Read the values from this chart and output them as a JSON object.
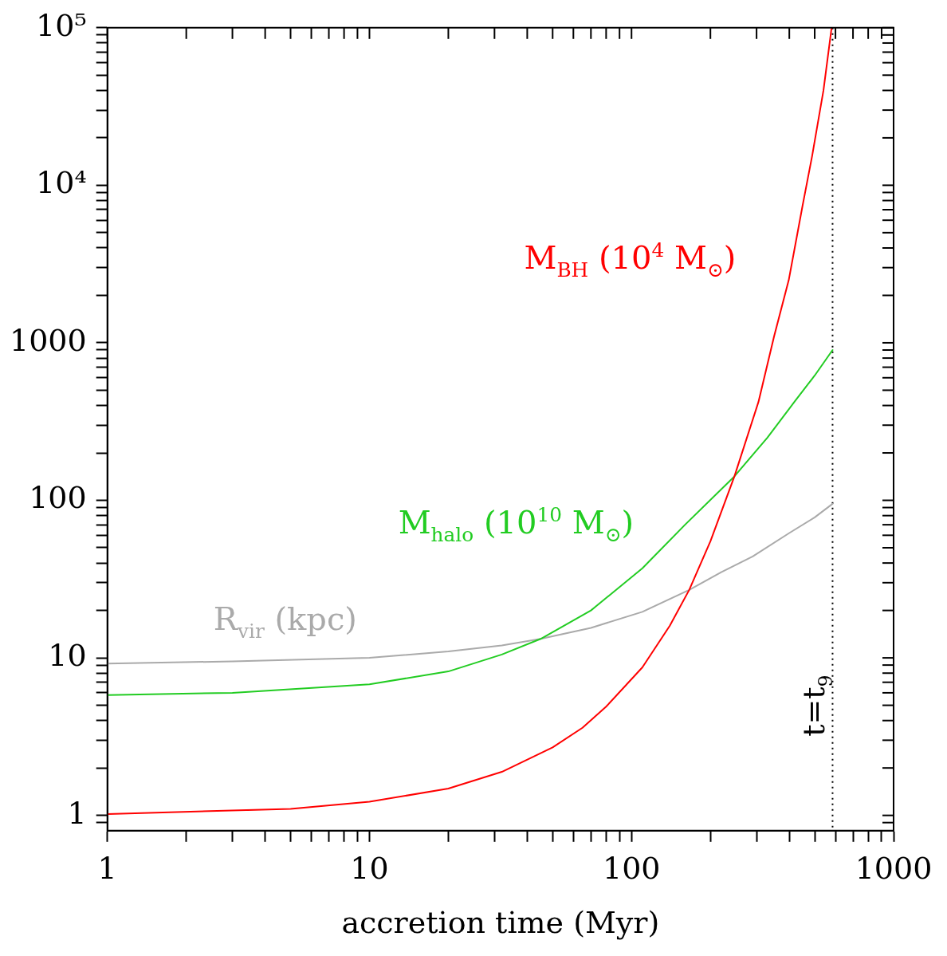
{
  "chart_data": {
    "type": "line",
    "xlabel": "accretion time (Myr)",
    "log": "xy",
    "grid": false,
    "legend": false,
    "marker": "none",
    "line_style": "solid",
    "xlim": [
      1,
      1000
    ],
    "ylim": [
      0.8,
      100000
    ],
    "xticks": [
      1,
      {
        "value": 2,
        "label": null
      },
      {
        "value": 3,
        "label": null
      },
      {
        "value": 4,
        "label": null
      },
      {
        "value": 5,
        "label": null
      },
      {
        "value": 6,
        "label": null
      },
      {
        "value": 7,
        "label": null
      },
      {
        "value": 8,
        "label": null
      },
      {
        "value": 9,
        "label": null
      },
      10,
      {
        "value": 20,
        "label": null
      },
      {
        "value": 30,
        "label": null
      },
      {
        "value": 40,
        "label": null
      },
      {
        "value": 50,
        "label": null
      },
      {
        "value": 60,
        "label": null
      },
      {
        "value": 70,
        "label": null
      },
      {
        "value": 80,
        "label": null
      },
      {
        "value": 90,
        "label": null
      },
      100,
      {
        "value": 200,
        "label": null
      },
      {
        "value": 300,
        "label": null
      },
      {
        "value": 400,
        "label": null
      },
      {
        "value": 500,
        "label": null
      },
      {
        "value": 600,
        "label": null
      },
      {
        "value": 700,
        "label": null
      },
      {
        "value": 800,
        "label": null
      },
      {
        "value": 900,
        "label": null
      },
      1000
    ],
    "yticks": [
      {
        "value": 0.9,
        "label": null
      },
      1,
      {
        "value": 2,
        "label": null
      },
      {
        "value": 3,
        "label": null
      },
      {
        "value": 4,
        "label": null
      },
      {
        "value": 5,
        "label": null
      },
      {
        "value": 6,
        "label": null
      },
      {
        "value": 7,
        "label": null
      },
      {
        "value": 8,
        "label": null
      },
      {
        "value": 9,
        "label": null
      },
      10,
      {
        "value": 20,
        "label": null
      },
      {
        "value": 30,
        "label": null
      },
      {
        "value": 40,
        "label": null
      },
      {
        "value": 50,
        "label": null
      },
      {
        "value": 60,
        "label": null
      },
      {
        "value": 70,
        "label": null
      },
      {
        "value": 80,
        "label": null
      },
      {
        "value": 90,
        "label": null
      },
      100,
      {
        "value": 200,
        "label": null
      },
      {
        "value": 300,
        "label": null
      },
      {
        "value": 400,
        "label": null
      },
      {
        "value": 500,
        "label": null
      },
      {
        "value": 600,
        "label": null
      },
      {
        "value": 700,
        "label": null
      },
      {
        "value": 800,
        "label": null
      },
      {
        "value": 900,
        "label": null
      },
      1000,
      {
        "value": 2000,
        "label": null
      },
      {
        "value": 3000,
        "label": null
      },
      {
        "value": 4000,
        "label": null
      },
      {
        "value": 5000,
        "label": null
      },
      {
        "value": 6000,
        "label": null
      },
      {
        "value": 7000,
        "label": null
      },
      {
        "value": 8000,
        "label": null
      },
      {
        "value": 9000,
        "label": null
      },
      {
        "value": 10000,
        "label": "10⁴"
      },
      {
        "value": 20000,
        "label": null
      },
      {
        "value": 30000,
        "label": null
      },
      {
        "value": 40000,
        "label": null
      },
      {
        "value": 50000,
        "label": null
      },
      {
        "value": 60000,
        "label": null
      },
      {
        "value": 70000,
        "label": null
      },
      {
        "value": 80000,
        "label": null
      },
      {
        "value": 90000,
        "label": null
      },
      {
        "value": 100000,
        "label": "10⁵"
      }
    ],
    "series": [
      {
        "name": "M$_{BH}$ (10$^{4}$ M$_{⊙}$)",
        "color": "#ff0000",
        "x": [
          1,
          5,
          10,
          20,
          32,
          50,
          65,
          80,
          110,
          140,
          166,
          200,
          247,
          305,
          350,
          398,
          450,
          489,
          540,
          580
        ],
        "values": [
          1.02,
          1.1,
          1.22,
          1.48,
          1.89,
          2.7,
          3.6,
          4.9,
          8.7,
          16,
          27,
          55,
          142,
          421,
          1100,
          2500,
          7500,
          15400,
          40000,
          100000
        ]
      },
      {
        "name": "M$_{halo}$ (10$^{10}$ M$_{⊙}$)",
        "color": "#22cc22",
        "x": [
          1,
          3,
          10,
          20,
          32,
          45,
          70,
          110,
          160,
          247,
          330,
          418,
          500,
          585
        ],
        "values": [
          5.8,
          6.0,
          6.8,
          8.2,
          10.5,
          13.2,
          20,
          37,
          70,
          142,
          250,
          421,
          620,
          900
        ]
      },
      {
        "name": "R$_{vir}$ (kpc)",
        "color": "#aaaaaa",
        "x": [
          1,
          3,
          10,
          20,
          32,
          45,
          70,
          110,
          166,
          220,
          290,
          400,
          500,
          585
        ],
        "values": [
          9.2,
          9.5,
          10.0,
          11.0,
          12.0,
          13.2,
          15.5,
          19.6,
          27,
          35,
          44,
          62,
          78,
          95
        ]
      }
    ],
    "ref_lines": [
      {
        "axis": "x",
        "value": 585,
        "label": "t=t$_{9}$",
        "color": "#000000",
        "line_style": "dotted"
      }
    ]
  }
}
